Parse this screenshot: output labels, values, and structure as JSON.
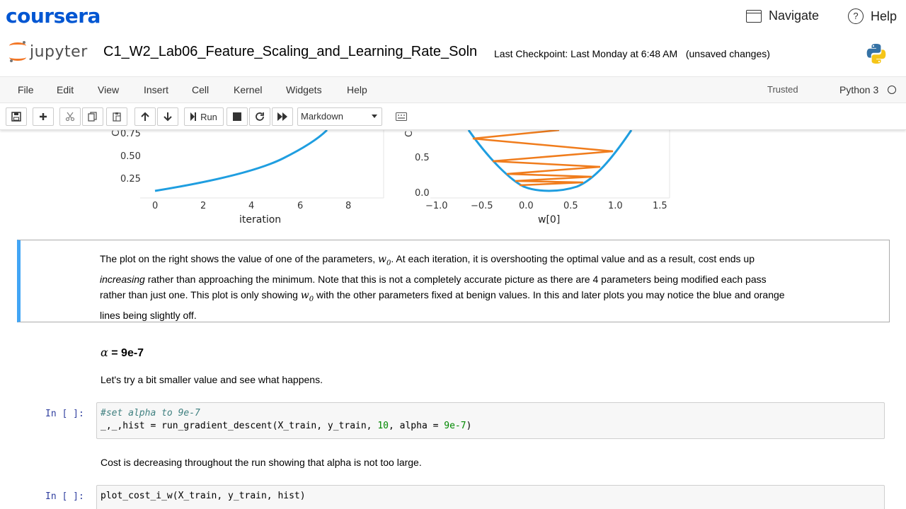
{
  "coursera": {
    "logo": "coursera",
    "navigate_label": "Navigate",
    "help_label": "Help"
  },
  "jupyter": {
    "logo_text": "jupyter",
    "notebook_title": "C1_W2_Lab06_Feature_Scaling_and_Learning_Rate_Soln",
    "checkpoint": "Last Checkpoint: Last Monday at 6:48 AM",
    "unsaved": "(unsaved changes)"
  },
  "menu": {
    "items": [
      "File",
      "Edit",
      "View",
      "Insert",
      "Cell",
      "Kernel",
      "Widgets",
      "Help"
    ],
    "trusted": "Trusted",
    "kernel": "Python 3"
  },
  "toolbar": {
    "run_label": "Run",
    "cell_type": "Markdown"
  },
  "plots": {
    "left": {
      "ylabel": "Cos",
      "yticks": [
        "0.75",
        "0.50",
        "0.25"
      ],
      "xticks": [
        "0",
        "2",
        "4",
        "6",
        "8"
      ],
      "xlabel": "iteration"
    },
    "right": {
      "ylabel": "Cos",
      "yticks": [
        "0.5",
        "0.0"
      ],
      "xticks": [
        "−1.0",
        "−0.5",
        "0.0",
        "0.5",
        "1.0",
        "1.5"
      ],
      "xlabel": "w[0]"
    }
  },
  "markdown1": {
    "t1": "The plot on the right shows the value of one of the parameters,",
    "var": "w",
    "sub": "0",
    "t2": ". At each iteration, it is overshooting the optimal value and as a result, cost ends up",
    "t3_em": "increasing",
    "t4": " rather than approaching the minimum. Note that this is not a completely accurate picture as there are 4 parameters being modified each pass",
    "t5": "rather than just one. This plot is only showing",
    "t6": "with the other parameters fixed at benign values. In this and later plots you may notice the blue and orange",
    "t7": "lines being slightly off."
  },
  "heading": {
    "alpha_symbol": "α",
    "rest": "= 9e-7"
  },
  "markdown2": "Let's try a bit smaller value and see what happens.",
  "code1": {
    "prompt": "In [ ]:",
    "comment": "#set alpha to 9e-7",
    "line2_a": "_,_,hist = run_gradient_descent(X_train, y_train, ",
    "line2_num": "10",
    "line2_b": ", alpha = ",
    "line2_num2": "9e-7",
    "line2_c": ")"
  },
  "markdown3": "Cost is decreasing throughout the run showing that alpha is not too large.",
  "code2": {
    "prompt": "In [ ]:",
    "code": "plot_cost_i_w(X_train, y_train, hist)"
  },
  "colors": {
    "coursera_blue": "#0056d2",
    "jupyter_orange": "#f37726",
    "plot_blue": "#1f9ee0",
    "plot_orange": "#f07c1c",
    "cell_selected": "#42a5f5"
  }
}
